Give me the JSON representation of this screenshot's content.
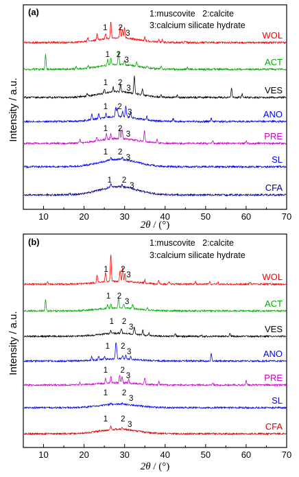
{
  "chart_data": [
    {
      "type": "line",
      "panel_label": "(a)",
      "ylabel": "Intensity / a.u.",
      "xlabel_symbol": "2θ",
      "xlabel_unit": " / (°)",
      "xlim": [
        5,
        70
      ],
      "xticks": [
        "10",
        "20",
        "30",
        "40",
        "50",
        "60",
        "70"
      ],
      "legend": [
        "1:muscovite   2:calcite",
        "3:calcium silicate hydrate"
      ],
      "peak_labels": [
        "1",
        "2",
        "3"
      ],
      "series": [
        {
          "name": "WOL",
          "color": "#ff0000",
          "peaks": [
            [
              20.9,
              0.4
            ],
            [
              23.2,
              0.7
            ],
            [
              25.3,
              0.6
            ],
            [
              26.6,
              1.9
            ],
            [
              28.9,
              1.3
            ],
            [
              29.5,
              1.0
            ],
            [
              30.0,
              1.2
            ],
            [
              35.0,
              0.4
            ],
            [
              38.4,
              0.3
            ],
            [
              39.3,
              0.3
            ],
            [
              45.0,
              0.2
            ],
            [
              50.0,
              0.2
            ]
          ],
          "hump": 0.6,
          "peak_marks": [
            25.2,
            29.0,
            30.8
          ]
        },
        {
          "name": "ACT",
          "color": "#00aa00",
          "peaks": [
            [
              10.5,
              1.8
            ],
            [
              18.0,
              0.3
            ],
            [
              21.0,
              0.3
            ],
            [
              25.8,
              0.7
            ],
            [
              26.6,
              0.8
            ],
            [
              28.5,
              1.6
            ],
            [
              30.0,
              0.5
            ],
            [
              33.0,
              0.5
            ],
            [
              35.6,
              0.3
            ],
            [
              39.0,
              0.3
            ],
            [
              45.5,
              0.2
            ]
          ],
          "hump": 0.6,
          "peak_marks": [
            25.8,
            28.5,
            30.5
          ]
        },
        {
          "name": "VES",
          "color": "#000000",
          "peaks": [
            [
              20.8,
              0.3
            ],
            [
              25.0,
              0.5
            ],
            [
              27.2,
              0.6
            ],
            [
              29.0,
              0.9
            ],
            [
              32.4,
              2.2
            ],
            [
              34.4,
              0.8
            ],
            [
              39.0,
              0.4
            ],
            [
              43.0,
              0.3
            ],
            [
              56.4,
              1.1
            ],
            [
              59.0,
              0.4
            ]
          ],
          "hump": 0.7,
          "peak_marks": [
            25.3,
            28.9,
            31.0
          ]
        },
        {
          "name": "ANO",
          "color": "#0000ee",
          "peaks": [
            [
              21.9,
              0.8
            ],
            [
              23.6,
              0.6
            ],
            [
              25.4,
              0.5
            ],
            [
              27.8,
              1.1
            ],
            [
              28.2,
              1.0
            ],
            [
              29.5,
              0.6
            ],
            [
              30.3,
              1.3
            ],
            [
              31.5,
              0.6
            ],
            [
              35.5,
              0.4
            ],
            [
              42.0,
              0.3
            ],
            [
              51.4,
              0.4
            ]
          ],
          "hump": 0.6,
          "peak_marks": [
            25.3,
            28.8,
            31.3
          ]
        },
        {
          "name": "PRE",
          "color": "#cc00cc",
          "peaks": [
            [
              19.0,
              0.4
            ],
            [
              23.1,
              0.5
            ],
            [
              25.5,
              0.7
            ],
            [
              26.6,
              0.6
            ],
            [
              28.8,
              1.2
            ],
            [
              29.4,
              1.0
            ],
            [
              34.9,
              1.3
            ],
            [
              38.0,
              0.4
            ],
            [
              51.8,
              0.3
            ],
            [
              60.0,
              0.3
            ]
          ],
          "hump": 0.6,
          "peak_marks": [
            25.3,
            28.9,
            30.9
          ]
        },
        {
          "name": "SL",
          "color": "#0000ee",
          "peaks": [
            [
              26.6,
              0.3
            ],
            [
              29.4,
              0.3
            ]
          ],
          "hump": 0.9,
          "peak_marks": [
            25.3,
            28.9,
            30.9
          ]
        },
        {
          "name": "CFA",
          "color": "#000088",
          "peaks": [
            [
              26.6,
              0.5
            ],
            [
              29.4,
              0.3
            ],
            [
              16.4,
              0.2
            ]
          ],
          "hump": 1.0,
          "peak_marks": [
            26.3,
            29.9,
            31.8
          ]
        }
      ]
    },
    {
      "type": "line",
      "panel_label": "(b)",
      "ylabel": "Intensity / a.u.",
      "xlabel_symbol": "2θ",
      "xlabel_unit": " / (°)",
      "xlim": [
        5,
        70
      ],
      "xticks": [
        "10",
        "20",
        "30",
        "40",
        "50",
        "60",
        "70"
      ],
      "legend": [
        "1:muscovite   2:calcite",
        "3:calcium silicate hydrate"
      ],
      "peak_labels": [
        "1",
        "2",
        "3"
      ],
      "series": [
        {
          "name": "WOL",
          "color": "#ff0000",
          "peaks": [
            [
              11.0,
              0.3
            ],
            [
              23.2,
              0.9
            ],
            [
              25.3,
              1.2
            ],
            [
              26.6,
              3.6
            ],
            [
              28.9,
              1.4
            ],
            [
              29.5,
              1.8
            ],
            [
              30.1,
              1.0
            ],
            [
              35.0,
              0.4
            ],
            [
              38.4,
              0.4
            ],
            [
              41.0,
              0.3
            ],
            [
              47.5,
              0.3
            ],
            [
              51.0,
              0.3
            ],
            [
              53.0,
              0.3
            ],
            [
              61.0,
              0.2
            ]
          ],
          "hump": 0.4,
          "peak_marks": [
            25.4,
            29.6,
            31.0
          ]
        },
        {
          "name": "ACT",
          "color": "#00aa00",
          "peaks": [
            [
              10.5,
              1.5
            ],
            [
              25.8,
              0.5
            ],
            [
              26.6,
              0.6
            ],
            [
              28.5,
              1.4
            ],
            [
              29.8,
              0.5
            ],
            [
              32.0,
              0.5
            ],
            [
              35.6,
              0.3
            ]
          ],
          "hump": 0.4,
          "peak_marks": [
            26.0,
            28.7,
            30.6
          ]
        },
        {
          "name": "VES",
          "color": "#000000",
          "peaks": [
            [
              26.6,
              0.4
            ],
            [
              29.2,
              0.6
            ],
            [
              32.4,
              1.0
            ],
            [
              34.5,
              0.6
            ],
            [
              36.0,
              0.3
            ],
            [
              42.5,
              0.3
            ],
            [
              49.0,
              0.2
            ],
            [
              56.0,
              0.4
            ]
          ],
          "hump": 0.4,
          "peak_marks": [
            26.8,
            29.9,
            31.6
          ]
        },
        {
          "name": "ANO",
          "color": "#0000ee",
          "peaks": [
            [
              21.9,
              0.5
            ],
            [
              23.6,
              0.4
            ],
            [
              25.0,
              0.4
            ],
            [
              27.8,
              1.5
            ],
            [
              28.0,
              1.4
            ],
            [
              29.5,
              0.5
            ],
            [
              30.3,
              0.6
            ],
            [
              31.5,
              0.4
            ],
            [
              51.4,
              1.0
            ]
          ],
          "hump": 0.3,
          "peak_marks": [
            25.8,
            29.6,
            31.1
          ]
        },
        {
          "name": "PRE",
          "color": "#cc00cc",
          "peaks": [
            [
              19.0,
              0.3
            ],
            [
              25.3,
              0.6
            ],
            [
              26.6,
              0.9
            ],
            [
              28.8,
              1.0
            ],
            [
              29.4,
              0.8
            ],
            [
              31.0,
              0.5
            ],
            [
              35.0,
              0.9
            ],
            [
              38.5,
              0.4
            ],
            [
              51.8,
              0.3
            ],
            [
              60.0,
              0.6
            ]
          ],
          "hump": 0.3,
          "peak_marks": [
            25.3,
            29.5,
            30.9
          ]
        },
        {
          "name": "SL",
          "color": "#0000ee",
          "peaks": [
            [
              26.6,
              0.2
            ],
            [
              29.4,
              0.2
            ]
          ],
          "hump": 0.45,
          "peak_marks": [
            25.3,
            29.9,
            31.6
          ]
        },
        {
          "name": "CFA",
          "color": "#dd0000",
          "peaks": [
            [
              26.6,
              0.4
            ],
            [
              29.4,
              0.3
            ]
          ],
          "hump": 0.6,
          "peak_marks": [
            25.3,
            29.6,
            31.3
          ]
        }
      ]
    }
  ]
}
